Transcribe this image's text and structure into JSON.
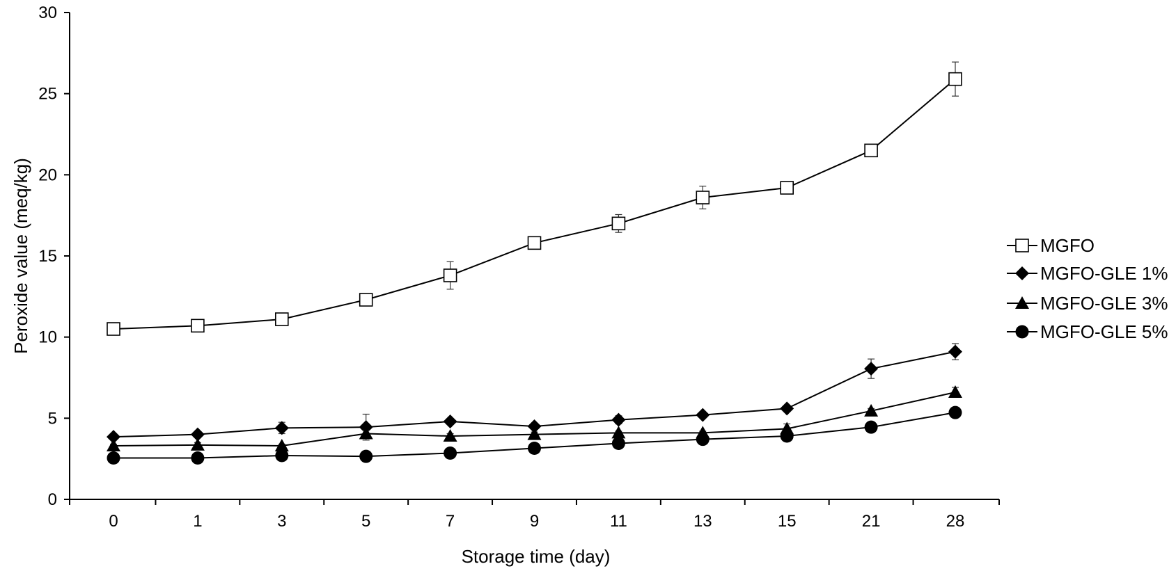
{
  "chart_data": {
    "type": "line",
    "title": "",
    "xlabel": "Storage time (day)",
    "ylabel": "Peroxide value (meq/kg)",
    "categories": [
      "0",
      "1",
      "3",
      "5",
      "7",
      "9",
      "11",
      "13",
      "15",
      "21",
      "28"
    ],
    "ylim": [
      0,
      30
    ],
    "yticks": [
      0,
      5,
      10,
      15,
      20,
      25,
      30
    ],
    "grid": false,
    "legend_position": "right",
    "series": [
      {
        "name": "MGFO",
        "marker": "open-square",
        "values": [
          10.5,
          10.7,
          11.1,
          12.3,
          13.8,
          15.8,
          17.0,
          18.6,
          19.2,
          21.5,
          25.9
        ],
        "errors": [
          0.2,
          0.3,
          0.2,
          0.2,
          0.85,
          0.3,
          0.55,
          0.7,
          0.3,
          0.2,
          1.05
        ]
      },
      {
        "name": "MGFO-GLE 1%",
        "marker": "diamond",
        "values": [
          3.85,
          4.0,
          4.4,
          4.45,
          4.8,
          4.5,
          4.9,
          5.2,
          5.6,
          8.05,
          9.1
        ],
        "errors": [
          0.1,
          0.15,
          0.35,
          0.8,
          0.15,
          0.15,
          0.25,
          0.15,
          0.15,
          0.6,
          0.5
        ]
      },
      {
        "name": "MGFO-GLE 3%",
        "marker": "triangle",
        "values": [
          3.3,
          3.35,
          3.3,
          4.05,
          3.9,
          4.0,
          4.1,
          4.1,
          4.35,
          5.45,
          6.6
        ],
        "errors": [
          0.1,
          0.15,
          0.1,
          0.2,
          0.15,
          0.15,
          0.1,
          0.1,
          0.3,
          0.15,
          0.3
        ]
      },
      {
        "name": "MGFO-GLE 5%",
        "marker": "circle",
        "values": [
          2.55,
          2.55,
          2.7,
          2.65,
          2.85,
          3.15,
          3.45,
          3.7,
          3.9,
          4.45,
          5.35
        ],
        "errors": [
          0.1,
          0.1,
          0.15,
          0.1,
          0.1,
          0.2,
          0.1,
          0.1,
          0.15,
          0.2,
          0.1
        ]
      }
    ]
  }
}
